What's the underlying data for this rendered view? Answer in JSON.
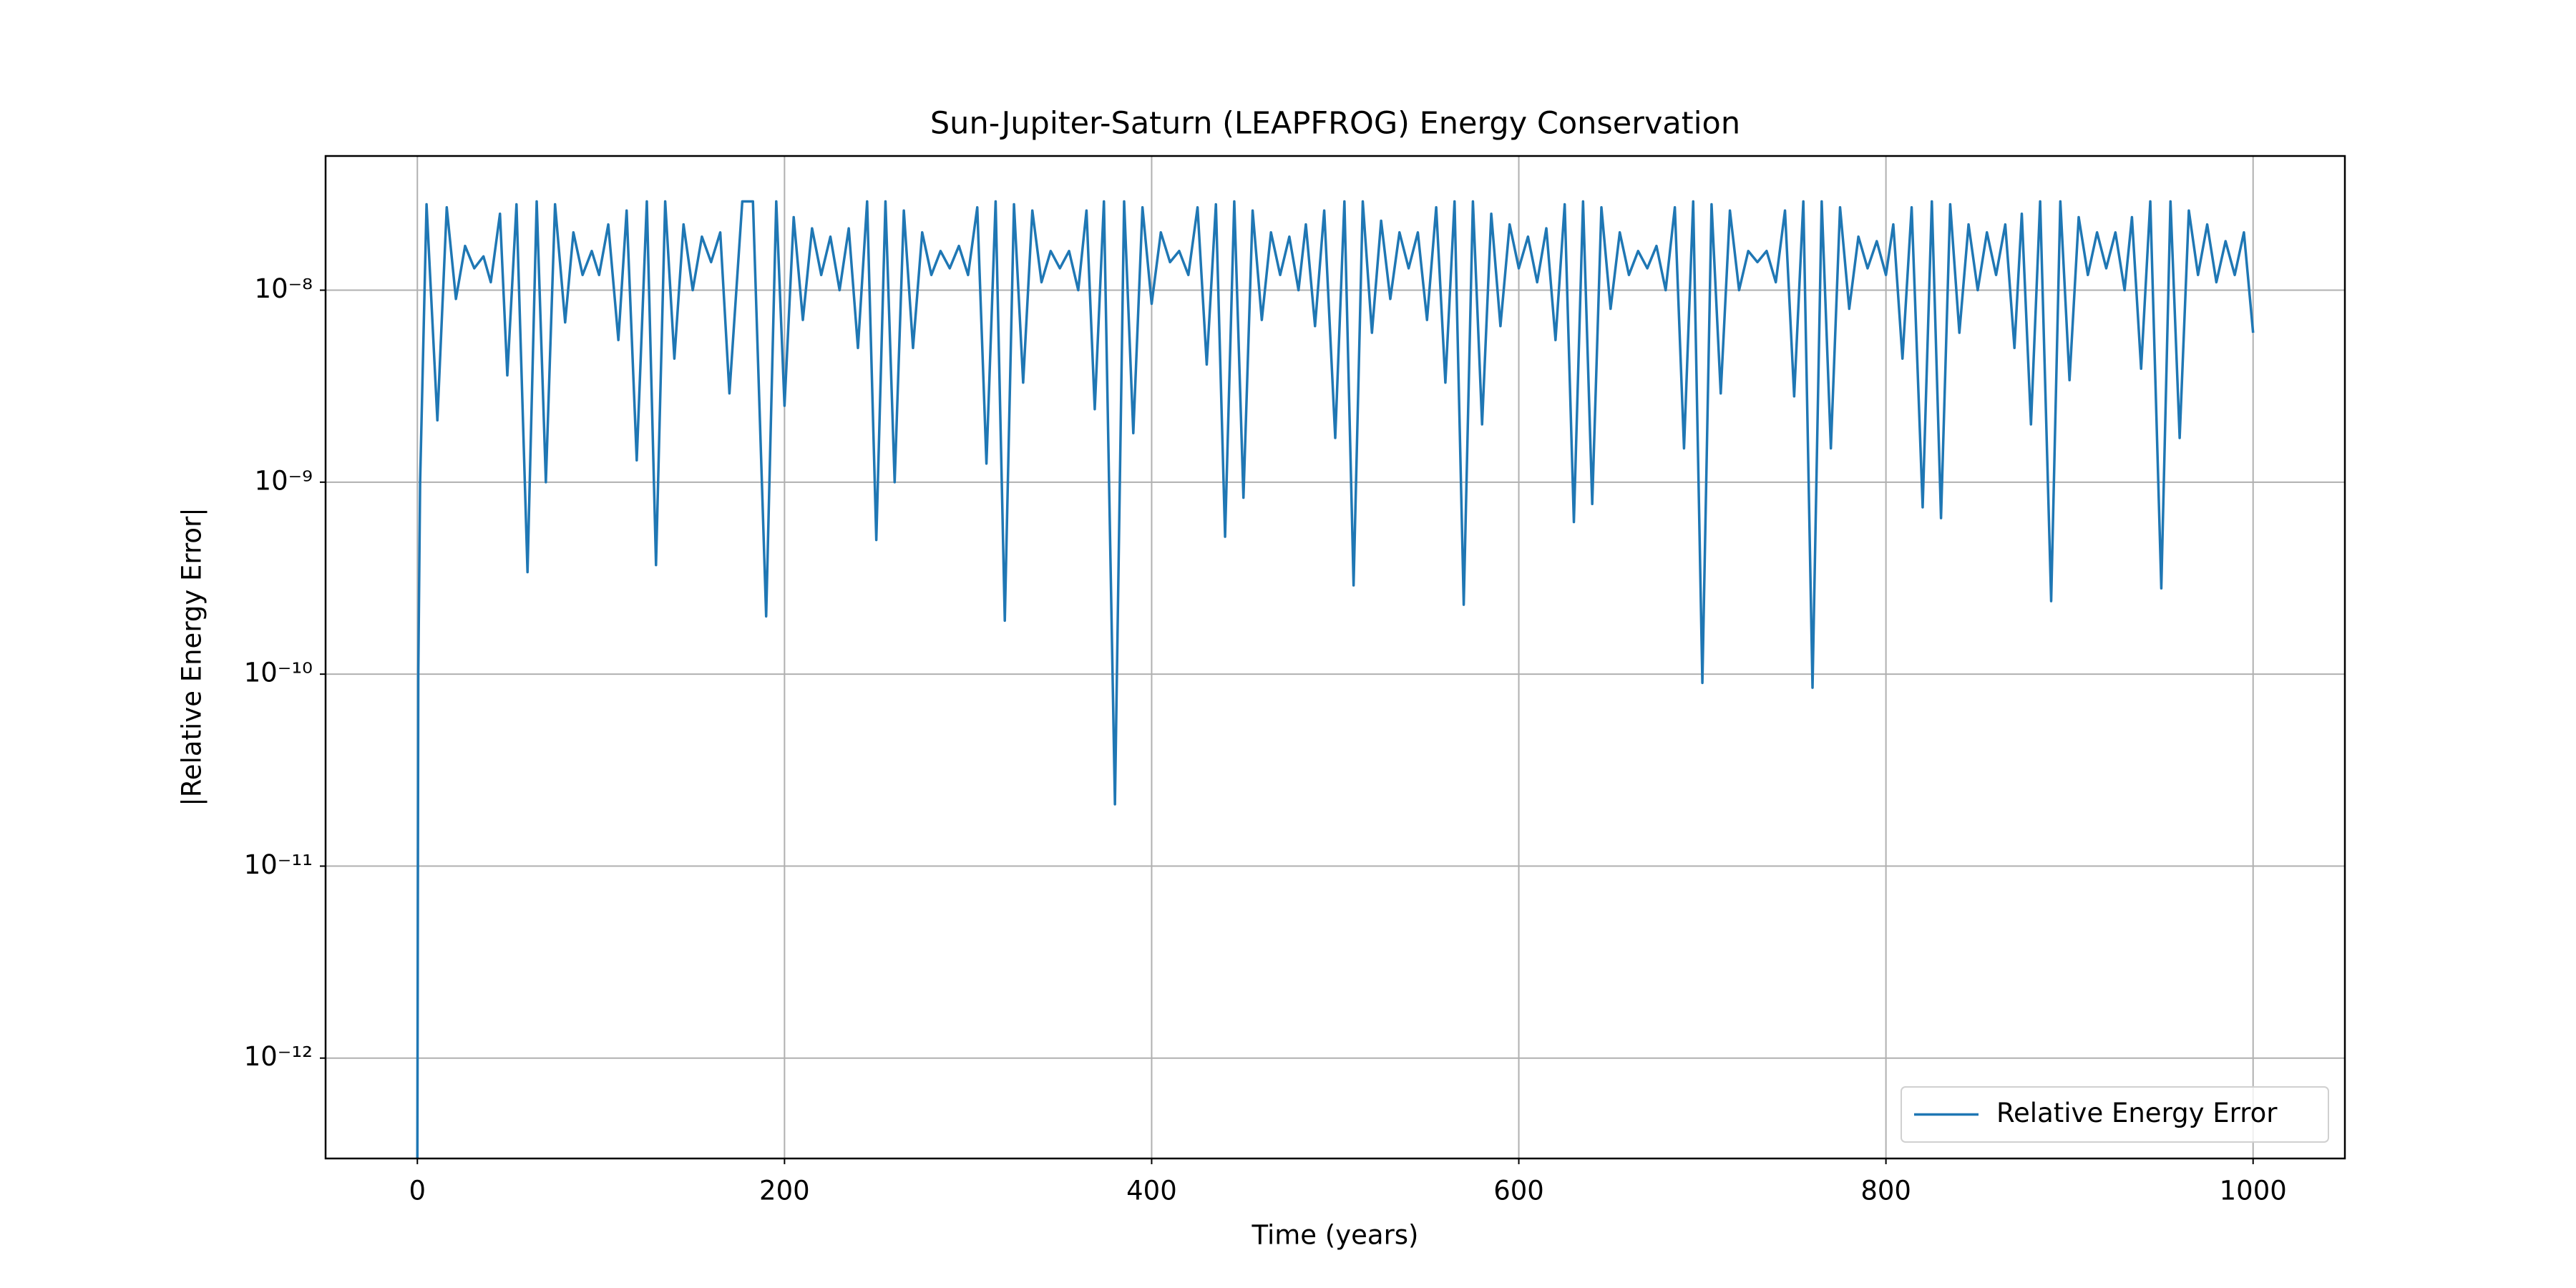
{
  "chart_data": {
    "type": "line",
    "title": "Sun-Jupiter-Saturn (LEAPFROG) Energy Conservation",
    "xlabel": "Time (years)",
    "ylabel": "|Relative Energy Error|",
    "x": [
      0,
      0.5,
      1.5,
      5,
      10.9,
      16,
      21,
      26,
      31,
      36,
      40,
      45,
      49,
      54,
      60,
      65,
      70,
      75,
      80.5,
      85,
      90,
      95,
      99,
      104,
      109.5,
      114,
      119.5,
      125,
      130,
      135,
      140,
      145,
      150,
      155,
      160,
      165,
      170,
      177,
      182.8,
      190,
      195.5,
      200,
      205,
      210,
      215,
      220,
      225,
      230,
      235,
      240,
      245,
      250,
      255,
      260,
      265,
      270,
      275,
      280,
      285,
      290,
      295,
      300,
      305,
      310,
      315,
      320,
      325,
      330,
      335,
      340,
      345,
      350,
      355,
      360,
      364.5,
      369,
      374,
      380,
      385,
      390,
      395,
      400,
      405,
      410,
      415,
      420,
      425,
      430,
      435,
      440,
      445,
      450,
      455,
      460,
      465,
      470,
      475,
      480,
      484,
      489,
      494,
      500,
      505,
      510,
      515,
      520,
      525,
      530,
      535,
      540,
      545,
      550,
      555,
      560,
      565,
      570,
      575,
      580,
      585,
      590,
      595,
      600,
      605,
      610,
      615,
      620,
      625,
      630,
      635,
      640,
      645,
      650,
      655,
      660,
      665,
      670,
      675,
      680,
      685,
      690,
      695,
      700,
      705,
      710,
      715,
      720,
      725,
      730,
      735,
      740,
      745,
      750,
      755,
      760,
      765,
      770,
      775,
      780,
      785,
      790,
      795,
      800,
      804,
      809,
      814,
      820,
      825,
      830,
      835,
      840,
      845,
      850,
      855,
      860,
      865,
      870,
      874,
      879,
      884,
      890,
      895,
      900,
      905,
      910,
      915,
      920,
      925,
      930,
      934,
      939,
      944,
      950,
      955,
      960,
      965,
      970,
      975,
      980,
      985,
      990,
      995,
      1000
    ],
    "series": [
      {
        "name": "Relative Energy Error",
        "color": "#1f77b4",
        "values": [
          3e-13,
          1e-10,
          1e-09,
          2.8e-08,
          2.1e-09,
          2.7e-08,
          9e-09,
          1.7e-08,
          1.3e-08,
          1.5e-08,
          1.1e-08,
          2.5e-08,
          3.6e-09,
          2.8e-08,
          3.4e-10,
          2.9e-08,
          1e-09,
          2.8e-08,
          6.8e-09,
          2e-08,
          1.2e-08,
          1.6e-08,
          1.2e-08,
          2.2e-08,
          5.5e-09,
          2.6e-08,
          1.3e-09,
          2.9e-08,
          3.7e-10,
          2.9e-08,
          4.4e-09,
          2.2e-08,
          1e-08,
          1.9e-08,
          1.4e-08,
          2e-08,
          2.9e-09,
          2.9e-08,
          2.9e-08,
          2e-10,
          2.9e-08,
          2.5e-09,
          2.4e-08,
          7e-09,
          2.1e-08,
          1.2e-08,
          1.9e-08,
          1e-08,
          2.1e-08,
          5e-09,
          2.9e-08,
          5e-10,
          2.9e-08,
          1e-09,
          2.6e-08,
          5e-09,
          2e-08,
          1.2e-08,
          1.6e-08,
          1.3e-08,
          1.7e-08,
          1.2e-08,
          2.7e-08,
          1.25e-09,
          2.9e-08,
          1.9e-10,
          2.8e-08,
          3.3e-09,
          2.6e-08,
          1.1e-08,
          1.6e-08,
          1.3e-08,
          1.6e-08,
          1e-08,
          2.6e-08,
          2.4e-09,
          2.9e-08,
          2.1e-11,
          2.9e-08,
          1.8e-09,
          2.7e-08,
          8.5e-09,
          2e-08,
          1.4e-08,
          1.6e-08,
          1.2e-08,
          2.7e-08,
          4.1e-09,
          2.8e-08,
          5.2e-10,
          2.9e-08,
          8.3e-10,
          2.6e-08,
          7e-09,
          2e-08,
          1.2e-08,
          1.9e-08,
          1e-08,
          2.2e-08,
          6.5e-09,
          2.6e-08,
          1.7e-09,
          2.9e-08,
          2.9e-10,
          2.9e-08,
          6e-09,
          2.3e-08,
          9e-09,
          2e-08,
          1.3e-08,
          2e-08,
          7e-09,
          2.7e-08,
          3.3e-09,
          2.9e-08,
          2.3e-10,
          2.9e-08,
          2e-09,
          2.5e-08,
          6.5e-09,
          2.2e-08,
          1.3e-08,
          1.9e-08,
          1.1e-08,
          2.1e-08,
          5.5e-09,
          2.8e-08,
          6.2e-10,
          2.9e-08,
          7.7e-10,
          2.7e-08,
          8e-09,
          2e-08,
          1.2e-08,
          1.6e-08,
          1.3e-08,
          1.7e-08,
          1e-08,
          2.7e-08,
          1.5e-09,
          2.9e-08,
          9e-11,
          2.8e-08,
          2.9e-09,
          2.6e-08,
          1e-08,
          1.6e-08,
          1.4e-08,
          1.6e-08,
          1.1e-08,
          2.6e-08,
          2.8e-09,
          2.9e-08,
          8.5e-11,
          2.9e-08,
          1.5e-09,
          2.7e-08,
          8e-09,
          1.9e-08,
          1.3e-08,
          1.8e-08,
          1.2e-08,
          2.2e-08,
          4.4e-09,
          2.7e-08,
          7.4e-10,
          2.9e-08,
          6.5e-10,
          2.8e-08,
          6e-09,
          2.2e-08,
          1e-08,
          2e-08,
          1.2e-08,
          2.2e-08,
          5e-09,
          2.5e-08,
          2e-09,
          2.9e-08,
          2.4e-10,
          2.9e-08,
          3.4e-09,
          2.4e-08,
          1.2e-08,
          2e-08,
          1.3e-08,
          2e-08,
          1e-08,
          2.4e-08,
          3.9e-09,
          2.9e-08,
          2.8e-10,
          2.9e-08,
          1.7e-09,
          2.6e-08,
          1.2e-08,
          2.2e-08,
          1.1e-08,
          1.8e-08,
          1.2e-08,
          2e-08,
          6e-09
        ]
      }
    ],
    "xlim": [
      -50,
      1050
    ],
    "xticks": [
      0,
      200,
      400,
      600,
      800,
      1000
    ],
    "ylim": [
      3e-13,
      5e-08
    ],
    "yscale": "log",
    "yticks": [
      {
        "value": 1e-12,
        "label": "10⁻¹²"
      },
      {
        "value": 1e-11,
        "label": "10⁻¹¹"
      },
      {
        "value": 1e-10,
        "label": "10⁻¹⁰"
      },
      {
        "value": 1e-09,
        "label": "10⁻⁹"
      },
      {
        "value": 1e-08,
        "label": "10⁻⁸"
      }
    ],
    "grid": true,
    "legend": "lower right"
  }
}
